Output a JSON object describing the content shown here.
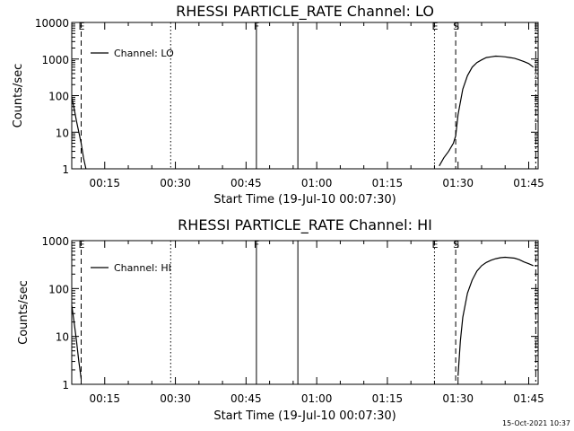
{
  "timestamp": "15-Oct-2021 10:37",
  "chart_data": [
    {
      "type": "line",
      "title": "RHESSI PARTICLE_RATE Channel: LO",
      "xlabel": "Start Time (19-Jul-10 00:07:30)",
      "ylabel": "Counts/sec",
      "yscale": "log",
      "ylim": [
        1,
        10000
      ],
      "yticks": [
        1,
        10,
        100,
        1000,
        10000
      ],
      "ytick_labels": [
        "1",
        "10",
        "100",
        "1000",
        "10000"
      ],
      "xlim_minutes": [
        8.0,
        107.0
      ],
      "xticks_minutes": [
        15,
        30,
        45,
        60,
        75,
        90,
        105
      ],
      "xtick_labels": [
        "00:15",
        "00:30",
        "00:45",
        "01:00",
        "01:15",
        "01:30",
        "01:45"
      ],
      "legend": "Channel: LO",
      "legend_loc": "top-left",
      "vlines": [
        {
          "minutes": 10.0,
          "style": "dashed",
          "label": "E"
        },
        {
          "minutes": 29.0,
          "style": "dotted",
          "label": ""
        },
        {
          "minutes": 47.2,
          "style": "solid",
          "label": "F"
        },
        {
          "minutes": 56.0,
          "style": "solid",
          "label": ""
        },
        {
          "minutes": 85.0,
          "style": "dotted",
          "label": "E"
        },
        {
          "minutes": 89.5,
          "style": "dashed",
          "label": "S"
        },
        {
          "minutes": 106.5,
          "style": "dashdot",
          "label": ""
        }
      ],
      "series": [
        {
          "name": "Channel: LO",
          "x": [
            8.0,
            8.5,
            9.0,
            9.5,
            10.0,
            10.5,
            11.0
          ],
          "y": [
            90,
            45,
            20,
            10,
            5,
            2,
            1
          ]
        },
        {
          "name": "Channel: LO",
          "x": [
            86.0,
            87.0,
            88.0,
            89.0,
            89.5,
            90.0,
            91.0,
            92.0,
            93.0,
            94.0,
            95.0,
            96.0,
            97.0,
            98.0,
            99.0,
            100.0,
            101.0,
            102.0,
            103.0,
            104.0,
            105.0,
            106.0
          ],
          "y": [
            1.2,
            2,
            3,
            5,
            8,
            30,
            150,
            350,
            600,
            800,
            950,
            1100,
            1150,
            1200,
            1180,
            1150,
            1100,
            1050,
            950,
            850,
            750,
            600
          ]
        }
      ]
    },
    {
      "type": "line",
      "title": "RHESSI PARTICLE_RATE Channel: HI",
      "xlabel": "Start Time (19-Jul-10 00:07:30)",
      "ylabel": "Counts/sec",
      "yscale": "log",
      "ylim": [
        1,
        1000
      ],
      "yticks": [
        1,
        10,
        100,
        1000
      ],
      "ytick_labels": [
        "1",
        "10",
        "100",
        "1000"
      ],
      "xlim_minutes": [
        8.0,
        107.0
      ],
      "xticks_minutes": [
        15,
        30,
        45,
        60,
        75,
        90,
        105
      ],
      "xtick_labels": [
        "00:15",
        "00:30",
        "00:45",
        "01:00",
        "01:15",
        "01:30",
        "01:45"
      ],
      "legend": "Channel: HI",
      "legend_loc": "top-left",
      "vlines": [
        {
          "minutes": 10.0,
          "style": "dashed",
          "label": "E"
        },
        {
          "minutes": 29.0,
          "style": "dotted",
          "label": ""
        },
        {
          "minutes": 47.2,
          "style": "solid",
          "label": "F"
        },
        {
          "minutes": 56.0,
          "style": "solid",
          "label": ""
        },
        {
          "minutes": 85.0,
          "style": "dotted",
          "label": "E"
        },
        {
          "minutes": 89.5,
          "style": "dashed",
          "label": "S"
        },
        {
          "minutes": 106.5,
          "style": "dashdot",
          "label": ""
        }
      ],
      "series": [
        {
          "name": "Channel: HI",
          "x": [
            8.0,
            8.5,
            9.0,
            9.5,
            10.0
          ],
          "y": [
            45,
            20,
            8,
            3,
            1.3
          ]
        },
        {
          "name": "Channel: HI",
          "x": [
            90.0,
            90.5,
            91.0,
            92.0,
            93.0,
            94.0,
            95.0,
            96.0,
            97.0,
            98.0,
            99.0,
            100.0,
            101.0,
            102.0,
            103.0,
            104.0,
            105.0,
            106.0
          ],
          "y": [
            1.5,
            8,
            25,
            80,
            150,
            230,
            300,
            350,
            390,
            420,
            440,
            450,
            440,
            430,
            400,
            360,
            330,
            300
          ]
        }
      ]
    }
  ]
}
